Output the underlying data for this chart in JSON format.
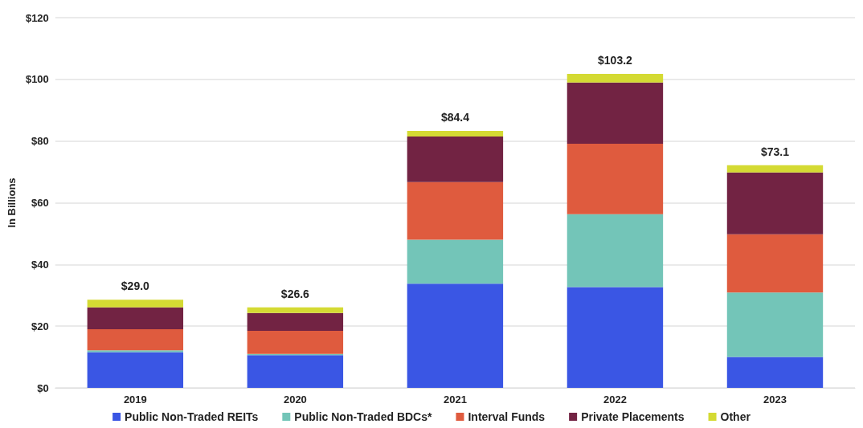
{
  "chart_data": {
    "type": "bar",
    "stacked": true,
    "ylabel": "In Billions",
    "categories": [
      "2019",
      "2020",
      "2021",
      "2022",
      "2023"
    ],
    "series": [
      {
        "name": "Public Non-Traded REITs",
        "color": "#3a56e4",
        "values": [
          11.6,
          10.6,
          33.8,
          32.7,
          10.0
        ]
      },
      {
        "name": "Public Non-Traded BDCs*",
        "color": "#73c5b8",
        "values": [
          0.6,
          0.4,
          14.2,
          23.6,
          20.9
        ]
      },
      {
        "name": "Interval Funds",
        "color": "#df5b3e",
        "values": [
          6.8,
          7.5,
          18.7,
          22.8,
          18.9
        ]
      },
      {
        "name": "Private Placements",
        "color": "#722343",
        "values": [
          7.1,
          5.8,
          14.8,
          19.9,
          20.0
        ]
      },
      {
        "name": "Other",
        "color": "#d4da33",
        "values": [
          2.5,
          1.8,
          1.8,
          2.8,
          2.4
        ]
      }
    ],
    "annotations": [
      {
        "text": "$29.0",
        "x": "2019",
        "y": 28.6
      },
      {
        "text": "$26.6",
        "x": "2020",
        "y": 26.1
      },
      {
        "text": "$84.4",
        "x": "2021",
        "y": 83.3
      },
      {
        "text": "$103.2",
        "x": "2022",
        "y": 101.8
      },
      {
        "text": "$73.1",
        "x": "2023",
        "y": 72.2
      }
    ],
    "ylim": [
      0,
      120
    ],
    "yticks": [
      {
        "value": 0,
        "label": "$0"
      },
      {
        "value": 20,
        "label": "$20"
      },
      {
        "value": 40,
        "label": "$40"
      },
      {
        "value": 60,
        "label": "$60"
      },
      {
        "value": 80,
        "label": "$80"
      },
      {
        "value": 100,
        "label": "$100"
      },
      {
        "value": 120,
        "label": "$120"
      }
    ],
    "grid": "y",
    "legend": "bottom"
  }
}
